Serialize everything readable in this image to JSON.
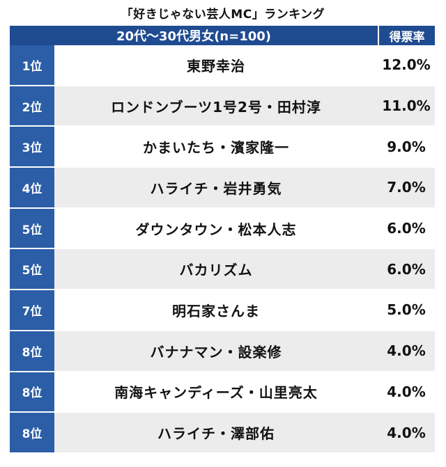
{
  "chart_data": {
    "type": "table",
    "title": "「好きじゃない芸人MC」ランキング",
    "header": {
      "group": "20代〜30代男女(n=100)",
      "rate": "得票率"
    },
    "rows": [
      {
        "rank": "1位",
        "name": "東野幸治",
        "rate": "12.0%",
        "value": 12.0
      },
      {
        "rank": "2位",
        "name": "ロンドンブーツ1号2号・田村淳",
        "rate": "11.0%",
        "value": 11.0
      },
      {
        "rank": "3位",
        "name": "かまいたち・濱家隆一",
        "rate": "9.0%",
        "value": 9.0
      },
      {
        "rank": "4位",
        "name": "ハライチ・岩井勇気",
        "rate": "7.0%",
        "value": 7.0
      },
      {
        "rank": "5位",
        "name": "ダウンタウン・松本人志",
        "rate": "6.0%",
        "value": 6.0
      },
      {
        "rank": "5位",
        "name": "バカリズム",
        "rate": "6.0%",
        "value": 6.0
      },
      {
        "rank": "7位",
        "name": "明石家さんま",
        "rate": "5.0%",
        "value": 5.0
      },
      {
        "rank": "8位",
        "name": "バナナマン・設楽修",
        "rate": "4.0%",
        "value": 4.0
      },
      {
        "rank": "8位",
        "name": "南海キャンディーズ・山里亮太",
        "rate": "4.0%",
        "value": 4.0
      },
      {
        "rank": "8位",
        "name": "ハライチ・澤部佑",
        "rate": "4.0%",
        "value": 4.0
      }
    ]
  },
  "colors": {
    "header_bg": "#1f4b91",
    "rank_bg": "#2b5ea6",
    "row_alt_bg": "#ececec"
  }
}
